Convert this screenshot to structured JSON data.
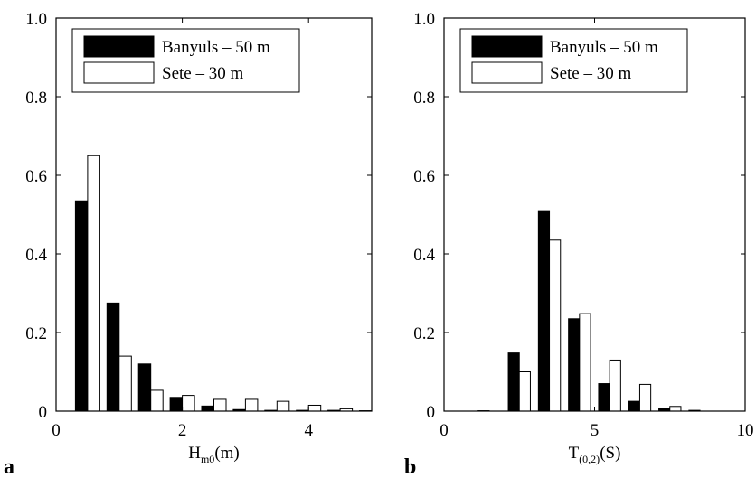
{
  "figure": {
    "panel_labels": [
      "a",
      "b"
    ]
  },
  "chart_data": [
    {
      "type": "bar",
      "xlabel": {
        "main": "H",
        "sub": "m0",
        "unit": "(m)"
      },
      "ylabel": "",
      "xlim": [
        0,
        5
      ],
      "ylim": [
        0,
        1.0
      ],
      "xticks": [
        0,
        2,
        4
      ],
      "yticks": [
        0,
        0.2,
        0.4,
        0.6,
        0.8,
        1.0
      ],
      "ytick_labels": [
        "0",
        "0.2",
        "0.4",
        "0.6",
        "0.8",
        "1.0"
      ],
      "grid": false,
      "legend_position": "top",
      "x": [
        0.5,
        1.0,
        1.5,
        2.0,
        2.5,
        3.0,
        3.5,
        4.0,
        4.5,
        5.0
      ],
      "series": [
        {
          "name": "Banyuls – 50 m",
          "color": "#000000",
          "fill": "#000000",
          "values": [
            0.535,
            0.275,
            0.12,
            0.035,
            0.013,
            0.004,
            0.002,
            0.002,
            0.002,
            0.001
          ]
        },
        {
          "name": "Sete – 30 m",
          "color": "#000000",
          "fill": "#ffffff",
          "values": [
            0.65,
            0.14,
            0.053,
            0.04,
            0.03,
            0.03,
            0.025,
            0.015,
            0.006,
            0.0
          ]
        }
      ]
    },
    {
      "type": "bar",
      "xlabel": {
        "main": "T",
        "sub": "(0,2)",
        "unit": "(S)"
      },
      "ylabel": "",
      "xlim": [
        0,
        10
      ],
      "ylim": [
        0,
        1.0
      ],
      "xticks": [
        0,
        5,
        10
      ],
      "yticks": [
        0,
        0.2,
        0.4,
        0.6,
        0.8,
        1.0
      ],
      "ytick_labels": [
        "0",
        "0.2",
        "0.4",
        "0.6",
        "0.8",
        "1.0"
      ],
      "grid": false,
      "legend_position": "top",
      "x": [
        1.5,
        2.5,
        3.5,
        4.5,
        5.5,
        6.5,
        7.5,
        8.5,
        9.5
      ],
      "series": [
        {
          "name": "Banyuls – 50 m",
          "color": "#000000",
          "fill": "#000000",
          "values": [
            0.001,
            0.148,
            0.51,
            0.235,
            0.07,
            0.025,
            0.007,
            0.002,
            0.0
          ]
        },
        {
          "name": "Sete – 30 m",
          "color": "#000000",
          "fill": "#ffffff",
          "values": [
            0.0,
            0.1,
            0.435,
            0.248,
            0.13,
            0.068,
            0.012,
            0.0,
            0.0
          ]
        }
      ]
    }
  ]
}
